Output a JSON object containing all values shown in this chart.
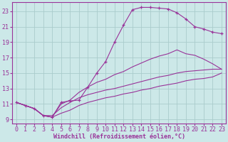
{
  "background_color": "#cce8e8",
  "grid_color": "#aacccc",
  "line_color": "#993399",
  "xlabel": "Windchill (Refroidissement éolien,°C)",
  "xlabel_fontsize": 6.0,
  "tick_fontsize": 6.0,
  "xlim": [
    -0.5,
    23.5
  ],
  "ylim": [
    8.5,
    24.2
  ],
  "yticks": [
    9,
    11,
    13,
    15,
    17,
    19,
    21,
    23
  ],
  "xticks": [
    0,
    1,
    2,
    3,
    4,
    5,
    6,
    7,
    8,
    9,
    10,
    11,
    12,
    13,
    14,
    15,
    16,
    17,
    18,
    19,
    20,
    21,
    22,
    23
  ],
  "lines": [
    {
      "x": [
        0,
        1,
        2,
        3,
        4,
        5,
        6,
        7,
        8,
        9,
        10,
        11,
        12,
        13,
        14,
        15,
        16,
        17,
        18,
        19,
        20,
        21,
        22,
        23
      ],
      "y": [
        11.2,
        10.8,
        10.4,
        9.5,
        9.3,
        11.2,
        11.4,
        11.5,
        13.2,
        15.0,
        16.5,
        19.0,
        21.2,
        23.2,
        23.5,
        23.5,
        23.4,
        23.3,
        22.8,
        22.0,
        21.0,
        20.7,
        20.3,
        20.1
      ],
      "has_markers": true
    },
    {
      "x": [
        0,
        1,
        2,
        3,
        4,
        5,
        6,
        7,
        8,
        9,
        10,
        11,
        12,
        13,
        14,
        15,
        16,
        17,
        18,
        19,
        20,
        21,
        22,
        23
      ],
      "y": [
        11.2,
        10.8,
        10.4,
        9.5,
        9.3,
        11.0,
        11.5,
        12.5,
        13.2,
        13.8,
        14.2,
        14.8,
        15.2,
        15.8,
        16.3,
        16.8,
        17.2,
        17.5,
        18.0,
        17.5,
        17.3,
        16.8,
        16.2,
        15.5
      ],
      "has_markers": false
    },
    {
      "x": [
        0,
        1,
        2,
        3,
        4,
        5,
        6,
        7,
        8,
        9,
        10,
        11,
        12,
        13,
        14,
        15,
        16,
        17,
        18,
        19,
        20,
        21,
        22,
        23
      ],
      "y": [
        11.2,
        10.8,
        10.4,
        9.5,
        9.5,
        10.5,
        11.2,
        11.8,
        12.2,
        12.5,
        12.8,
        13.0,
        13.3,
        13.6,
        13.9,
        14.2,
        14.5,
        14.7,
        15.0,
        15.2,
        15.3,
        15.4,
        15.5,
        15.5
      ],
      "has_markers": false
    },
    {
      "x": [
        0,
        1,
        2,
        3,
        4,
        5,
        6,
        7,
        8,
        9,
        10,
        11,
        12,
        13,
        14,
        15,
        16,
        17,
        18,
        19,
        20,
        21,
        22,
        23
      ],
      "y": [
        11.2,
        10.8,
        10.4,
        9.5,
        9.3,
        9.8,
        10.2,
        10.8,
        11.2,
        11.5,
        11.8,
        12.0,
        12.3,
        12.5,
        12.8,
        13.0,
        13.3,
        13.5,
        13.7,
        14.0,
        14.2,
        14.3,
        14.5,
        15.0
      ],
      "has_markers": false
    }
  ]
}
